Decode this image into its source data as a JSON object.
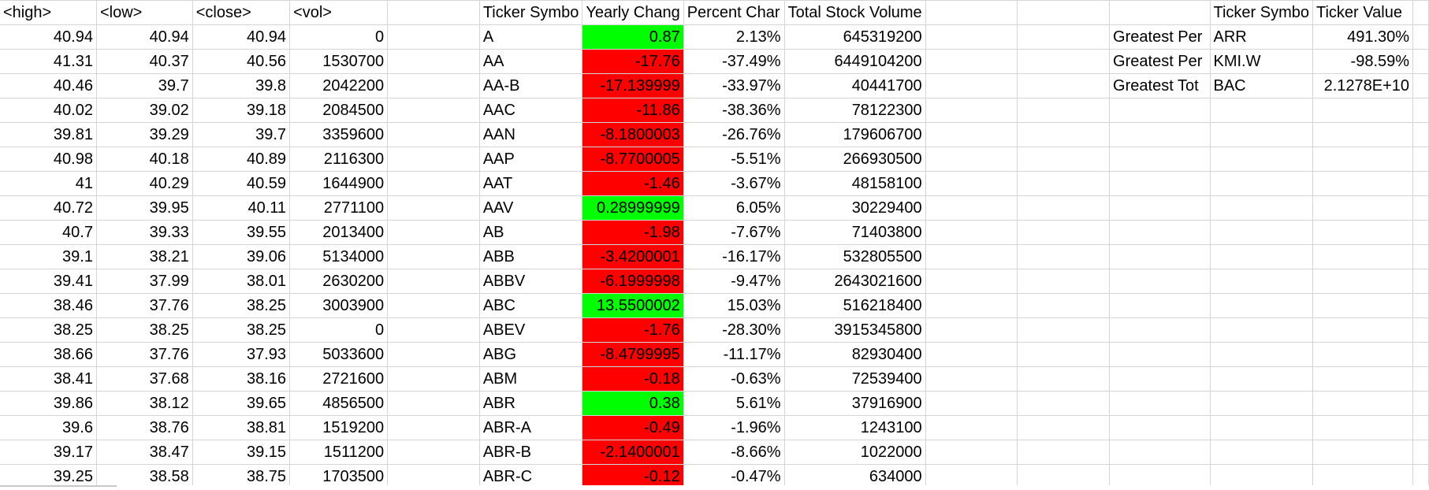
{
  "colors": {
    "positive_fill": "#00ff00",
    "negative_fill": "#ff0000",
    "gridline": "#d4d4d4"
  },
  "headers": {
    "high": "<high>",
    "low": "<low>",
    "close": "<close>",
    "vol": "<vol>",
    "ticker_symbol": "Ticker Symbo",
    "yearly_change": "Yearly Chang",
    "percent_change": "Percent Char",
    "total_stock_volume": "Total Stock Volume",
    "summary_ticker_symbol": "Ticker Symbo",
    "summary_ticker_value": "Ticker Value"
  },
  "rows": [
    {
      "high": "40.94",
      "low": "40.94",
      "close": "40.94",
      "vol": "0",
      "ticker": "A",
      "yearly": "0.87",
      "sign": "pos",
      "pct": "2.13%",
      "tsv": "645319200"
    },
    {
      "high": "41.31",
      "low": "40.37",
      "close": "40.56",
      "vol": "1530700",
      "ticker": "AA",
      "yearly": "-17.76",
      "sign": "neg",
      "pct": "-37.49%",
      "tsv": "6449104200"
    },
    {
      "high": "40.46",
      "low": "39.7",
      "close": "39.8",
      "vol": "2042200",
      "ticker": "AA-B",
      "yearly": "-17.139999",
      "sign": "neg",
      "pct": "-33.97%",
      "tsv": "40441700"
    },
    {
      "high": "40.02",
      "low": "39.02",
      "close": "39.18",
      "vol": "2084500",
      "ticker": "AAC",
      "yearly": "-11.86",
      "sign": "neg",
      "pct": "-38.36%",
      "tsv": "78122300"
    },
    {
      "high": "39.81",
      "low": "39.29",
      "close": "39.7",
      "vol": "3359600",
      "ticker": "AAN",
      "yearly": "-8.1800003",
      "sign": "neg",
      "pct": "-26.76%",
      "tsv": "179606700"
    },
    {
      "high": "40.98",
      "low": "40.18",
      "close": "40.89",
      "vol": "2116300",
      "ticker": "AAP",
      "yearly": "-8.7700005",
      "sign": "neg",
      "pct": "-5.51%",
      "tsv": "266930500"
    },
    {
      "high": "41",
      "low": "40.29",
      "close": "40.59",
      "vol": "1644900",
      "ticker": "AAT",
      "yearly": "-1.46",
      "sign": "neg",
      "pct": "-3.67%",
      "tsv": "48158100"
    },
    {
      "high": "40.72",
      "low": "39.95",
      "close": "40.11",
      "vol": "2771100",
      "ticker": "AAV",
      "yearly": "0.28999999",
      "sign": "pos",
      "pct": "6.05%",
      "tsv": "30229400"
    },
    {
      "high": "40.7",
      "low": "39.33",
      "close": "39.55",
      "vol": "2013400",
      "ticker": "AB",
      "yearly": "-1.98",
      "sign": "neg",
      "pct": "-7.67%",
      "tsv": "71403800"
    },
    {
      "high": "39.1",
      "low": "38.21",
      "close": "39.06",
      "vol": "5134000",
      "ticker": "ABB",
      "yearly": "-3.4200001",
      "sign": "neg",
      "pct": "-16.17%",
      "tsv": "532805500"
    },
    {
      "high": "39.41",
      "low": "37.99",
      "close": "38.01",
      "vol": "2630200",
      "ticker": "ABBV",
      "yearly": "-6.1999998",
      "sign": "neg",
      "pct": "-9.47%",
      "tsv": "2643021600"
    },
    {
      "high": "38.46",
      "low": "37.76",
      "close": "38.25",
      "vol": "3003900",
      "ticker": "ABC",
      "yearly": "13.5500002",
      "sign": "pos",
      "pct": "15.03%",
      "tsv": "516218400"
    },
    {
      "high": "38.25",
      "low": "38.25",
      "close": "38.25",
      "vol": "0",
      "ticker": "ABEV",
      "yearly": "-1.76",
      "sign": "neg",
      "pct": "-28.30%",
      "tsv": "3915345800"
    },
    {
      "high": "38.66",
      "low": "37.76",
      "close": "37.93",
      "vol": "5033600",
      "ticker": "ABG",
      "yearly": "-8.4799995",
      "sign": "neg",
      "pct": "-11.17%",
      "tsv": "82930400"
    },
    {
      "high": "38.41",
      "low": "37.68",
      "close": "38.16",
      "vol": "2721600",
      "ticker": "ABM",
      "yearly": "-0.18",
      "sign": "neg",
      "pct": "-0.63%",
      "tsv": "72539400"
    },
    {
      "high": "39.86",
      "low": "38.12",
      "close": "39.65",
      "vol": "4856500",
      "ticker": "ABR",
      "yearly": "0.38",
      "sign": "pos",
      "pct": "5.61%",
      "tsv": "37916900"
    },
    {
      "high": "39.6",
      "low": "38.76",
      "close": "38.81",
      "vol": "1519200",
      "ticker": "ABR-A",
      "yearly": "-0.49",
      "sign": "neg",
      "pct": "-1.96%",
      "tsv": "1243100"
    },
    {
      "high": "39.17",
      "low": "38.47",
      "close": "39.15",
      "vol": "1511200",
      "ticker": "ABR-B",
      "yearly": "-2.1400001",
      "sign": "neg",
      "pct": "-8.66%",
      "tsv": "1022000"
    },
    {
      "high": "39.25",
      "low": "38.58",
      "close": "38.75",
      "vol": "1703500",
      "ticker": "ABR-C",
      "yearly": "-0.12",
      "sign": "neg",
      "pct": "-0.47%",
      "tsv": "634000"
    }
  ],
  "summary": [
    {
      "label": "Greatest Per",
      "ticker": "ARR",
      "value": "491.30%"
    },
    {
      "label": "Greatest Per",
      "ticker": "KMI.W",
      "value": "-98.59%"
    },
    {
      "label": "Greatest Tot",
      "ticker": "BAC",
      "value": "2.1278E+10"
    }
  ]
}
